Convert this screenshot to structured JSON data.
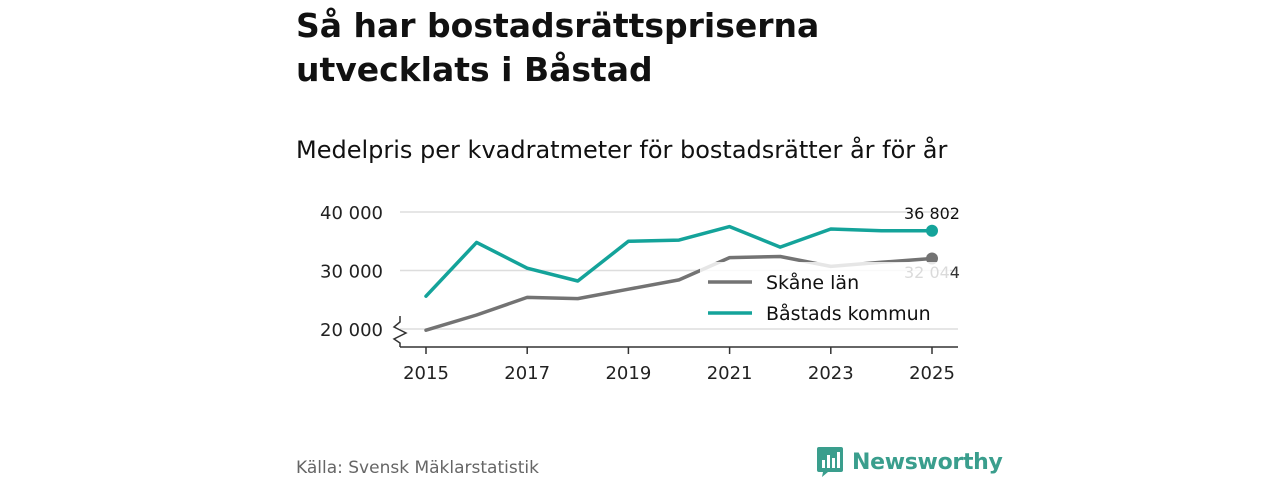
{
  "title": "Så har bostadsrättspriserna utvecklats i Båstad",
  "subtitle": "Medelpris per kvadratmeter för bostadsrätter år för år",
  "source": "Källa: Svensk Mäklarstatistik",
  "brand": "Newsworthy",
  "colors": {
    "skane": "#737373",
    "bastad": "#14a39a",
    "grid": "#dddddd",
    "axis": "#333333"
  },
  "chart_data": {
    "type": "line",
    "title": "Så har bostadsrättspriserna utvecklats i Båstad",
    "subtitle": "Medelpris per kvadratmeter för bostadsrätter år för år",
    "xlabel": "",
    "ylabel": "",
    "x": [
      2015,
      2016,
      2017,
      2018,
      2019,
      2020,
      2021,
      2022,
      2023,
      2024,
      2025
    ],
    "x_ticks": [
      2015,
      2017,
      2019,
      2021,
      2023,
      2025
    ],
    "y_ticks": [
      20000,
      30000,
      40000
    ],
    "y_tick_labels": [
      "20 000",
      "30 000",
      "40 000"
    ],
    "ylim": [
      16000,
      40000
    ],
    "axis_break": true,
    "series": [
      {
        "name": "Skåne län",
        "values": [
          19800,
          22400,
          25400,
          25200,
          26800,
          28400,
          32200,
          32400,
          30700,
          31400,
          32044
        ],
        "end_label": "32 044"
      },
      {
        "name": "Båstads kommun",
        "values": [
          25600,
          34800,
          30400,
          28200,
          35000,
          35200,
          37500,
          34000,
          37100,
          36800,
          36802
        ],
        "end_label": "36 802"
      }
    ],
    "legend": "right"
  }
}
